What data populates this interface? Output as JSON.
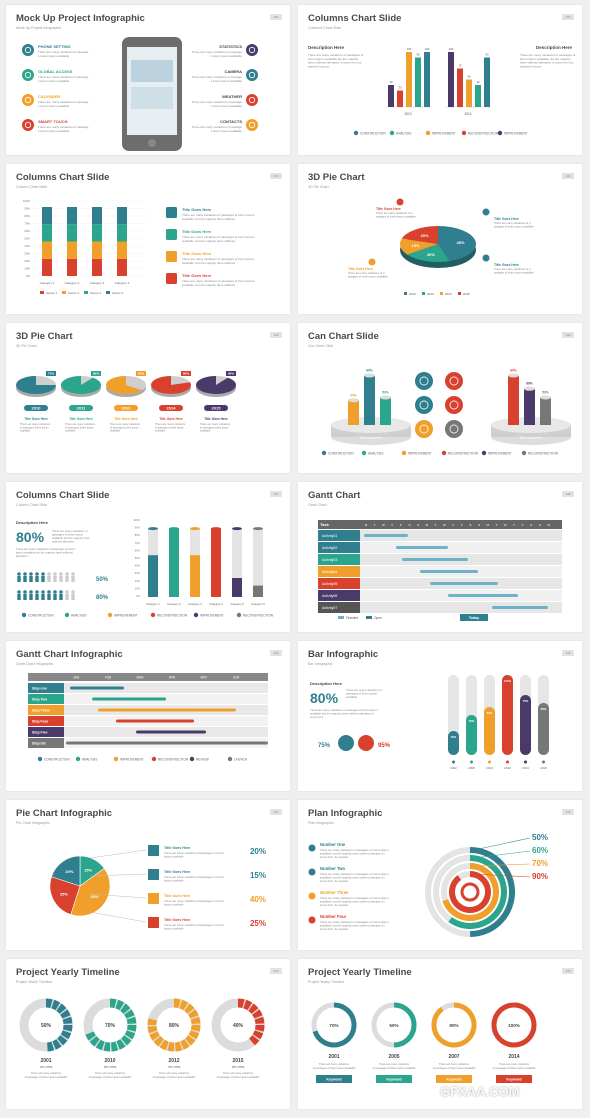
{
  "colors": {
    "teal": "#2f7f8f",
    "green": "#2ca58d",
    "orange": "#f0a02a",
    "red": "#d9412f",
    "purple": "#4a3a6a",
    "gray": "#777777",
    "dark": "#444444"
  },
  "slides": [
    {
      "title": "Mock Up Project Infographic",
      "subtitle": "Mock Up Project Infographic",
      "page": "131",
      "left_items": [
        {
          "label": "PHONE SETTING",
          "icon": "phone-icon"
        },
        {
          "label": "GLOBAL ACCESS",
          "icon": "globe-icon"
        },
        {
          "label": "CALENDER",
          "icon": "calendar-icon"
        },
        {
          "label": "SMART TOUCH",
          "icon": "touch-icon"
        }
      ],
      "right_items": [
        {
          "label": "STATISTICS",
          "icon": "statistics-icon"
        },
        {
          "label": "CAMERA",
          "icon": "camera-icon"
        },
        {
          "label": "WEATHER",
          "icon": "cloud-icon"
        },
        {
          "label": "CONTACTS",
          "icon": "contacts-icon"
        }
      ],
      "item_text": "There are many variations of passages lorem ipsum available"
    },
    {
      "title": "Columns Chart Slide",
      "subtitle": "Columns Chart Slide",
      "page": "132",
      "desc_title": "Description Here",
      "desc_text": "There are many variations of passages of lorem ipsum available but the majority have suffered alteration in some form by injected humour",
      "chart_data": [
        {
          "type": "bar",
          "categories": [
            "CONSTRUCTION",
            "ANALYSIS",
            "IMPROVEMENT",
            "RECONSTRUCTION",
            "IMPROVEMENT"
          ],
          "group": "2013",
          "values": [
            40,
            30,
            100,
            90,
            100
          ]
        },
        {
          "type": "bar",
          "categories": [
            "CONSTRUCTION",
            "ANALYSIS",
            "IMPROVEMENT",
            "RECONSTRUCTION",
            "IMPROVEMENT"
          ],
          "group": "2014",
          "values": [
            100,
            70,
            50,
            40,
            90
          ]
        }
      ],
      "legend": [
        "CONSTRUCTION",
        "ANALYSIS",
        "IMPROVEMENT",
        "RECONSTRUCTION",
        "IMPROVEMENT"
      ]
    },
    {
      "title": "Columns Chart Slide",
      "subtitle": "Column Chart Slide",
      "page": "133",
      "chart_data": {
        "type": "bar",
        "stacked": true,
        "categories": [
          "Category 1",
          "Category 2",
          "Category 3",
          "Category 4"
        ],
        "yticks": [
          "0%",
          "10%",
          "20%",
          "30%",
          "40%",
          "50%",
          "60%",
          "70%",
          "80%",
          "90%",
          "100%"
        ],
        "series": [
          {
            "name": "Series 1",
            "values": [
              25,
              25,
              25,
              25
            ]
          },
          {
            "name": "Series 2",
            "values": [
              25,
              25,
              25,
              25
            ]
          },
          {
            "name": "Series 3",
            "values": [
              25,
              25,
              25,
              25
            ]
          },
          {
            "name": "Series 4",
            "values": [
              25,
              25,
              25,
              25
            ]
          }
        ]
      },
      "items": [
        {
          "title": "Title Goes Here",
          "icon": "chart-icon"
        },
        {
          "title": "Title Goes Here",
          "icon": "calendar-icon"
        },
        {
          "title": "Title Goes Here",
          "icon": "tag-icon"
        },
        {
          "title": "Title Goes Here",
          "icon": "laptop-icon"
        }
      ],
      "item_text": "There are many variations of passages of lorem ipsum available, but the majority have suffered"
    },
    {
      "title": "3D Pie Chart",
      "subtitle": "3D Pie Chart",
      "page": "134",
      "chart_data": {
        "type": "pie",
        "labels": [
          "2010",
          "2012",
          "2014",
          "2015"
        ],
        "values": [
          45,
          20,
          15,
          20
        ]
      },
      "callout_title": "Title Goes Here",
      "callout_text": "There are many variations of passages of lorem ipsum available"
    },
    {
      "title": "3D Pie Chart",
      "subtitle": "3D Pie Chart",
      "page": "135",
      "chart_data": {
        "type": "pie",
        "labels": [
          "2010",
          "2011",
          "2012",
          "2014",
          "2015"
        ],
        "values": [
          75,
          90,
          65,
          80,
          90
        ]
      },
      "item_title": "Title Goes Here",
      "item_text": "There are many variations of passages lorem ipsum available"
    },
    {
      "title": "Can Chart Slide",
      "subtitle": "Can Chart Slide",
      "page": "136",
      "chart_data": [
        {
          "type": "bar",
          "values": [
            45,
            90,
            50
          ]
        },
        {
          "type": "bar",
          "values": [
            90,
            66,
            50
          ]
        }
      ],
      "base_label": "Title Goes Here",
      "legend": [
        "CONSTRUCTION",
        "ANALYSIS",
        "IMPROVEMENT",
        "RECONSTRUCTION",
        "IMPROVEMENT",
        "RECONSTRUCTION"
      ]
    },
    {
      "title": "Columns Chart Slide",
      "subtitle": "Column Chart Slide",
      "page": "137",
      "desc_title": "Description Here",
      "big_percent": "80%",
      "desc_text": "There are many variations of passages of lorem ipsum available but the majority have suffered alteration",
      "stat1": "50%",
      "stat2": "80%",
      "chart_data": {
        "type": "bar",
        "categories": [
          "Category 1",
          "Category 2",
          "Category 3",
          "Category 4",
          "Category 5",
          "Category 6"
        ],
        "values": [
          90,
          90,
          90,
          90,
          90,
          90
        ],
        "fill": [
          55,
          90,
          55,
          90,
          25,
          15
        ],
        "yticks": [
          "0%",
          "10%",
          "20%",
          "30%",
          "40%",
          "50%",
          "60%",
          "70%",
          "80%",
          "90%",
          "100%"
        ]
      },
      "legend": [
        "CONSTRUCTION",
        "ANALYSIS",
        "IMPROVEMENT",
        "RECONSTRUCTION",
        "IMPROVEMENT",
        "RECONSTRUCTION"
      ]
    },
    {
      "title": "Gantt Chart",
      "subtitle": "Gantt Chart",
      "page": "138",
      "col_header": "Task",
      "days": [
        "M",
        "T",
        "W",
        "T",
        "F",
        "S",
        "S",
        "M",
        "T",
        "W",
        "T",
        "F",
        "S",
        "S",
        "M",
        "T",
        "W",
        "T",
        "F",
        "S",
        "S",
        "M"
      ],
      "tasks": [
        "Activity01",
        "Activity02",
        "Activity03",
        "Activity04",
        "Activity05",
        "Activity06",
        "Activity07"
      ],
      "legend": [
        "Finished",
        "Open"
      ],
      "today": "Today"
    },
    {
      "title": "Gantt Chart Infographic",
      "subtitle": "Gantt Chart Infographic",
      "page": "139",
      "months": [
        "JAN",
        "FEB",
        "MAR",
        "APR",
        "MAY",
        "JUN"
      ],
      "steps": [
        "Step one",
        "Step Two",
        "Step Three",
        "Step Four",
        "Step Five",
        "Step Six"
      ],
      "legend": [
        "CONSTRUCTION",
        "ANALYSIS",
        "IMPROVEMENT",
        "RECONSTRUCTION",
        "REVIEW",
        "LAUNCH"
      ]
    },
    {
      "title": "Bar Infographic",
      "subtitle": "Bar Infographic",
      "page": "140",
      "desc_title": "Description Here",
      "big_percent": "80%",
      "desc_text": "There are many variations of passages of lorem ipsum available",
      "male": "75%",
      "female": "95%",
      "chart_data": {
        "type": "bar",
        "categories": [
          "2002",
          "2008",
          "2010",
          "2012",
          "2014",
          "2016"
        ],
        "values": [
          30,
          50,
          60,
          100,
          75,
          65
        ],
        "labels": [
          "30%",
          "50%",
          "60%",
          "100%",
          "75%",
          "65%"
        ]
      }
    },
    {
      "title": "Pie Chart Infographic",
      "subtitle": "Pie Chart Infographic",
      "page": "141",
      "chart_data": {
        "type": "pie",
        "values": [
          15,
          40,
          25,
          20
        ],
        "labels": [
          "15%",
          "40%",
          "25%",
          "20%"
        ]
      },
      "items": [
        {
          "title": "Title Goes Here",
          "value": "20%",
          "icon": "chart-icon"
        },
        {
          "title": "Title Goes Here",
          "value": "15%",
          "icon": "calendar-icon"
        },
        {
          "title": "Title Goes Here",
          "value": "40%",
          "icon": "tag-icon"
        },
        {
          "title": "Title Goes Here",
          "value": "25%",
          "icon": "trophy-icon"
        }
      ],
      "item_text": "There are many variations of passages of Lorem Ipsum available"
    },
    {
      "title": "Plan Infographic",
      "subtitle": "Plan Infographic",
      "page": "142",
      "items": [
        "Number One",
        "Number Two",
        "Number Three",
        "Number Four"
      ],
      "item_text": "There are many variations of passages of Lorem Ipsum available, but the majority have suffered alteration in some form, by injected",
      "chart_data": {
        "type": "pie",
        "values": [
          50,
          60,
          70,
          90
        ],
        "labels": [
          "50%",
          "60%",
          "70%",
          "90%"
        ]
      }
    },
    {
      "title": "Project Yearly Timeline",
      "subtitle": "Project Yearly Timeline",
      "page": "143",
      "chart_data": {
        "type": "pie",
        "values": [
          50,
          70,
          80,
          40
        ],
        "labels": [
          "50%",
          "70%",
          "80%",
          "40%"
        ]
      },
      "years": [
        "2001",
        "2010",
        "2012",
        "2015"
      ],
      "counts": [
        "465,785$",
        "505,785$",
        "755,785$",
        "955,785$"
      ],
      "item_text": "There are many variations of passages of lorem ipsum available"
    },
    {
      "title": "Project Yearly Timeline",
      "subtitle": "Project Yearly Timeline",
      "page": "144",
      "chart_data": {
        "type": "pie",
        "values": [
          70,
          50,
          90,
          100
        ],
        "labels": [
          "70%",
          "50%",
          "90%",
          "100%"
        ]
      },
      "years": [
        "2001",
        "2005",
        "2007",
        "2014"
      ],
      "keyword": "Keyword",
      "item_text": "There are many variations of passages of lorem ipsum available"
    }
  ],
  "watermark": "GFXAA.COM"
}
